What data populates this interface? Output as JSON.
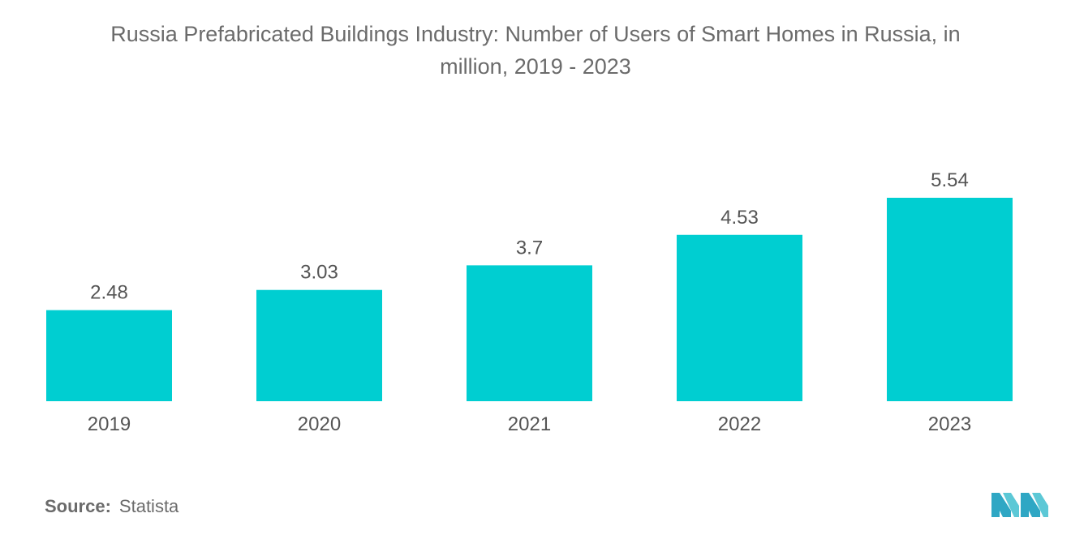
{
  "title": {
    "line1": "Russia Prefabricated Buildings Industry: Number of Users of Smart Homes in Russia, in",
    "line2": "million, 2019 - 2023"
  },
  "source": {
    "label": "Source:",
    "value": "Statista"
  },
  "logo": {
    "name": "mordor-intelligence-logo"
  },
  "colors": {
    "bar": "#00CED1",
    "label": "#555555",
    "logo": "#3CB4C8"
  },
  "chart_data": {
    "type": "bar",
    "title": "Russia Prefabricated Buildings Industry: Number of Users of Smart Homes in Russia, in million, 2019 - 2023",
    "categories": [
      "2019",
      "2020",
      "2021",
      "2022",
      "2023"
    ],
    "values": [
      2.48,
      3.03,
      3.7,
      4.53,
      5.54
    ],
    "value_labels": [
      "2.48",
      "3.03",
      "3.7",
      "4.53",
      "5.54"
    ],
    "xlabel": "",
    "ylabel": "",
    "ylim": [
      0,
      5.54
    ],
    "grid": false,
    "legend": "none"
  }
}
